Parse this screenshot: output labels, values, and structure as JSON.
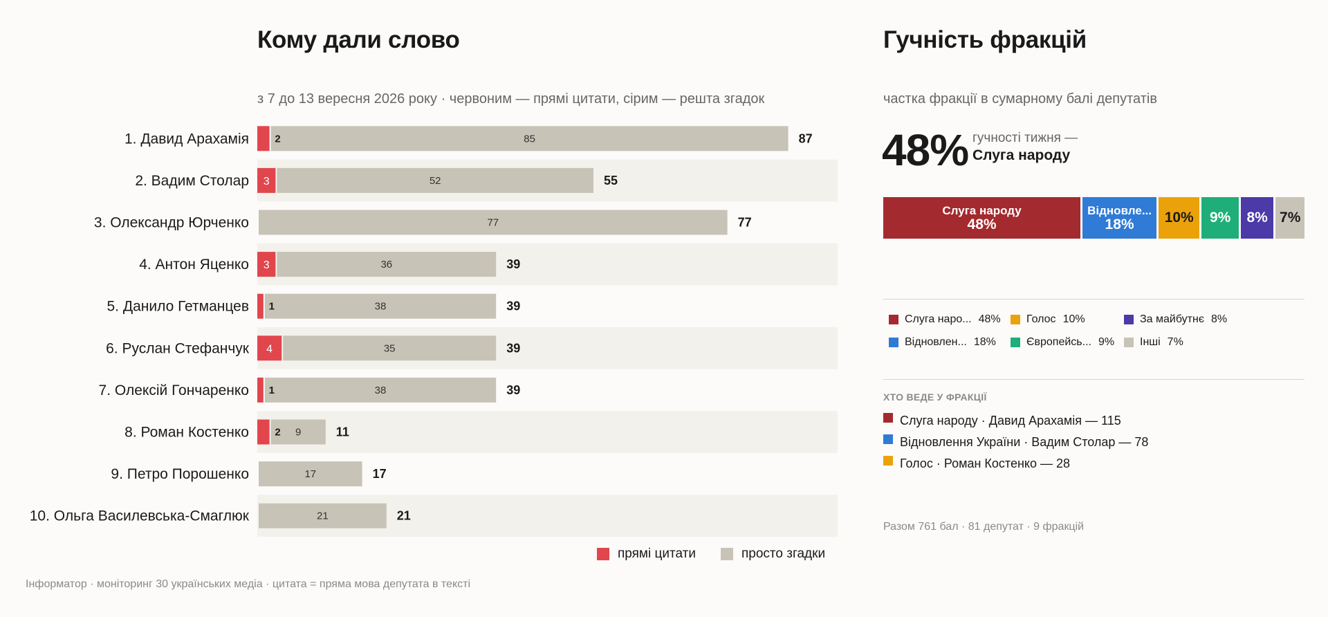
{
  "left": {
    "title": "Кому дали слово",
    "subtitle": "з 7 до 13 вересня 2026 року · червоним — прямі цитати, сірим — решта згадок",
    "legend": [
      {
        "label": "прямі цитати",
        "color": "#e0464c"
      },
      {
        "label": "просто згадки",
        "color": "#c8c3b7"
      }
    ],
    "footer": "Інформатор · моніторинг 30 українських медіа · цитата = пряма мова депутата в тексті"
  },
  "chart_data": {
    "type": "bar",
    "orientation": "horizontal",
    "stacked": true,
    "categories": [
      "1. Давид Арахамія",
      "2. Вадим Столар",
      "3. Олександр Юрченко",
      "4. Антон Яценко",
      "5. Данило Гетманцев",
      "6. Руслан Стефанчук",
      "7. Олексій Гончаренко",
      "8. Роман Костенко",
      "9. Петро Порошенко",
      "10. Ольга Василевська-Смаглюк"
    ],
    "series": [
      {
        "name": "прямі цитати",
        "color": "#e0464c",
        "values": [
          2,
          3,
          0,
          3,
          1,
          4,
          1,
          2,
          0,
          0
        ]
      },
      {
        "name": "просто згадки",
        "color": "#c8c3b7",
        "values": [
          85,
          52,
          77,
          36,
          38,
          35,
          38,
          9,
          17,
          21
        ]
      }
    ],
    "totals": [
      87,
      55,
      77,
      39,
      39,
      39,
      39,
      11,
      17,
      21
    ],
    "xlim": [
      0,
      95
    ],
    "grid": false,
    "legend_position": "bottom-right"
  },
  "right": {
    "title": "Гучність фракцій",
    "subtitle": "частка фракції в сумарному балі депутатів",
    "big_value": "48%",
    "big_caption": "гучності тижня —",
    "big_faction": "Слуга народу",
    "share_bar": [
      {
        "label": "Слуга народу",
        "pct": "48%",
        "value": 48,
        "color": "#a32a2e"
      },
      {
        "label": "Відновле...",
        "pct": "18%",
        "value": 18,
        "color": "#2f7bd6"
      },
      {
        "label": "",
        "pct": "10%",
        "value": 10,
        "color": "#eba20a"
      },
      {
        "label": "",
        "pct": "9%",
        "value": 9,
        "color": "#1fae7a"
      },
      {
        "label": "",
        "pct": "8%",
        "value": 8,
        "color": "#4b3aa8"
      },
      {
        "label": "",
        "pct": "7%",
        "value": 7,
        "color": "#c8c3b7"
      }
    ],
    "faction_legend": [
      {
        "name": "Слуга наро...",
        "pct": "48%",
        "color": "#a32a2e"
      },
      {
        "name": "Голос",
        "pct": "10%",
        "color": "#eba20a"
      },
      {
        "name": "За майбутнє",
        "pct": "8%",
        "color": "#4b3aa8"
      },
      {
        "name": "Відновлен...",
        "pct": "18%",
        "color": "#2f7bd6"
      },
      {
        "name": "Європейсь...",
        "pct": "9%",
        "color": "#1fae7a"
      },
      {
        "name": "Інші",
        "pct": "7%",
        "color": "#c8c3b7"
      }
    ],
    "leaders_heading": "ХТО ВЕДЕ У ФРАКЦІЇ",
    "leaders": [
      {
        "text": "Слуга народу · Давид Арахамія — 115",
        "color": "#a32a2e"
      },
      {
        "text": "Відновлення України · Вадим Столар — 78",
        "color": "#2f7bd6"
      },
      {
        "text": "Голос · Роман Костенко — 28",
        "color": "#eba20a"
      }
    ],
    "summary": "Разом 761 бал · 81 депутат · 9 фракцій"
  }
}
